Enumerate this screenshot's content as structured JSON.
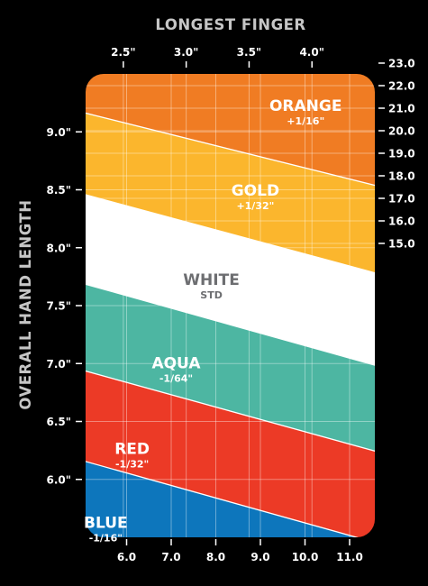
{
  "chart_data": {
    "type": "area",
    "title": "LONGEST FINGER",
    "ylabel": "OVERALL HAND LENGTH",
    "x_top": {
      "ticks": [
        2.5,
        3.0,
        3.5,
        4.0
      ],
      "labels": [
        "2.5\"",
        "3.0\"",
        "3.5\"",
        "4.0\""
      ]
    },
    "x_bottom": {
      "ticks": [
        6.0,
        7.0,
        8.0,
        9.0,
        10.0,
        11.0
      ],
      "labels": [
        "6.0",
        "7.0",
        "8.0",
        "9.0",
        "10.0",
        "11.0"
      ]
    },
    "y_left": {
      "ticks": [
        9.0,
        8.5,
        8.0,
        7.5,
        7.0,
        6.5,
        6.0
      ],
      "labels": [
        "9.0\"",
        "8.5\"",
        "8.0\"",
        "7.5\"",
        "7.0\"",
        "6.5\"",
        "6.0\""
      ]
    },
    "y_right": {
      "ticks": [
        23.0,
        22.0,
        21.0,
        20.0,
        19.0,
        18.0,
        17.0,
        16.0,
        15.0
      ],
      "labels": [
        "23.0",
        "22.0",
        "21.0",
        "20.0",
        "19.0",
        "18.0",
        "17.0",
        "16.0",
        "15.0"
      ]
    },
    "xlim_top": [
      2.2,
      4.5
    ],
    "ylim_left": [
      5.5,
      9.5
    ],
    "grid": true,
    "boundaries": [
      {
        "between": "ORANGE / GOLD",
        "x": [
          2.2,
          4.5
        ],
        "y": [
          9.22,
          8.48
        ]
      },
      {
        "between": "GOLD / WHITE",
        "x": [
          2.2,
          4.5
        ],
        "y": [
          8.52,
          7.72
        ]
      },
      {
        "between": "WHITE / AQUA",
        "x": [
          2.2,
          4.5
        ],
        "y": [
          7.75,
          6.92
        ]
      },
      {
        "between": "AQUA / RED",
        "x": [
          2.2,
          4.5
        ],
        "y": [
          7.0,
          6.18
        ]
      },
      {
        "between": "RED / BLUE",
        "x": [
          2.2,
          4.5
        ],
        "y": [
          6.22,
          5.39
        ]
      }
    ],
    "zones": [
      {
        "name": "ORANGE",
        "sub": "+1/16\"",
        "color": "#f07c23",
        "label_x": 3.95,
        "label_y": 9.18
      },
      {
        "name": "GOLD",
        "sub": "+1/32\"",
        "color": "#fbb62d",
        "label_x": 3.55,
        "label_y": 8.45
      },
      {
        "name": "WHITE",
        "sub": "STD",
        "color": "#ffffff",
        "text_color": "#6d6e71",
        "label_x": 3.2,
        "label_y": 7.68
      },
      {
        "name": "AQUA",
        "sub": "-1/64\"",
        "color": "#4db6a2",
        "label_x": 2.92,
        "label_y": 6.96
      },
      {
        "name": "RED",
        "sub": "-1/32\"",
        "color": "#ec3a26",
        "label_x": 2.57,
        "label_y": 6.22
      },
      {
        "name": "BLUE",
        "sub": "-1/16\"",
        "color": "#0d76bc",
        "label_x": 2.36,
        "label_y": 5.58
      }
    ]
  }
}
